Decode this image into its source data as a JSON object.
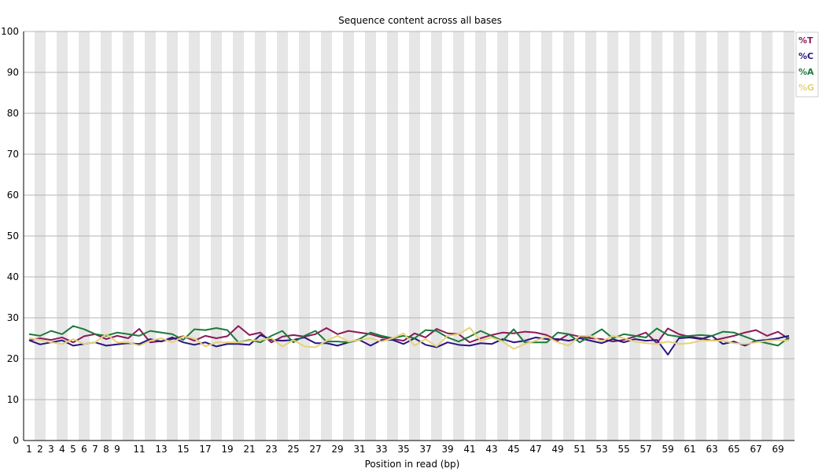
{
  "chart_data": {
    "type": "line",
    "title": "Sequence content across all bases",
    "xlabel": "Position in read (bp)",
    "ylabel": "",
    "ylim": [
      0,
      100
    ],
    "yticks": [
      0,
      10,
      20,
      30,
      40,
      50,
      60,
      70,
      80,
      90,
      100
    ],
    "categories": [
      "1",
      "2",
      "3",
      "4",
      "5",
      "6",
      "7",
      "8",
      "9",
      "10",
      "11",
      "12",
      "13",
      "14",
      "15",
      "16",
      "17",
      "18",
      "19",
      "20",
      "21",
      "22",
      "23",
      "24",
      "25",
      "26",
      "27",
      "28",
      "29",
      "30",
      "31",
      "32",
      "33",
      "34",
      "35",
      "36",
      "37",
      "38",
      "39",
      "40",
      "41",
      "42",
      "43",
      "44",
      "45",
      "46",
      "47",
      "48",
      "49",
      "50",
      "51",
      "52",
      "53",
      "54",
      "55",
      "56",
      "57",
      "58",
      "59",
      "60",
      "61",
      "62",
      "63",
      "64",
      "65",
      "66",
      "67",
      "68",
      "69",
      "70"
    ],
    "xtick_labels": [
      "1",
      "2",
      "3",
      "4",
      "5",
      "6",
      "7",
      "8",
      "9",
      "",
      "11",
      "",
      "13",
      "",
      "15",
      "",
      "17",
      "",
      "19",
      "",
      "21",
      "",
      "23",
      "",
      "25",
      "",
      "27",
      "",
      "29",
      "",
      "31",
      "",
      "33",
      "",
      "35",
      "",
      "37",
      "",
      "39",
      "",
      "41",
      "",
      "43",
      "",
      "45",
      "",
      "47",
      "",
      "49",
      "",
      "51",
      "",
      "53",
      "",
      "55",
      "",
      "57",
      "",
      "59",
      "",
      "61",
      "",
      "63",
      "",
      "65",
      "",
      "67",
      "",
      "69",
      ""
    ],
    "grid": true,
    "legend_position": "top-right",
    "series": [
      {
        "name": "%T",
        "color": "#8b1a5a",
        "values": [
          24.5,
          25.0,
          24.6,
          25.2,
          24.0,
          25.5,
          26.0,
          24.8,
          25.6,
          25.0,
          27.3,
          24.0,
          24.3,
          24.8,
          25.5,
          24.4,
          25.6,
          25.0,
          25.5,
          28.0,
          25.8,
          26.4,
          24.0,
          25.4,
          25.8,
          25.4,
          26.0,
          27.5,
          26.0,
          26.8,
          26.4,
          26.0,
          25.2,
          24.8,
          24.4,
          26.2,
          25.2,
          27.3,
          26.2,
          26.0,
          24.0,
          25.0,
          25.8,
          26.4,
          26.2,
          26.6,
          26.4,
          25.8,
          24.4,
          26.0,
          25.4,
          25.0,
          24.8,
          24.2,
          24.6,
          25.4,
          26.4,
          23.8,
          27.4,
          26.0,
          25.4,
          25.0,
          24.4,
          25.0,
          25.6,
          26.4,
          27.0,
          25.6,
          26.6,
          24.8
        ]
      },
      {
        "name": "%C",
        "color": "#2a1580",
        "values": [
          24.5,
          23.5,
          24.0,
          24.5,
          23.2,
          23.6,
          24.0,
          23.2,
          23.5,
          23.8,
          23.6,
          24.8,
          24.2,
          25.2,
          24.0,
          23.4,
          24.0,
          23.0,
          23.6,
          23.6,
          23.4,
          25.8,
          24.6,
          24.4,
          24.6,
          25.2,
          23.8,
          23.8,
          23.2,
          24.0,
          24.6,
          23.2,
          24.6,
          24.6,
          23.6,
          25.0,
          23.4,
          22.8,
          24.0,
          23.4,
          23.2,
          23.8,
          23.6,
          24.8,
          24.0,
          24.4,
          25.2,
          24.8,
          24.8,
          24.4,
          25.0,
          24.4,
          23.8,
          24.8,
          24.0,
          24.8,
          24.4,
          24.6,
          21.0,
          25.0,
          25.2,
          24.8,
          25.6,
          23.6,
          24.2,
          23.2,
          24.4,
          24.6,
          25.0,
          25.6
        ]
      },
      {
        "name": "%A",
        "color": "#1e7a3a",
        "values": [
          26.0,
          25.6,
          26.8,
          26.0,
          28.0,
          27.2,
          26.0,
          25.6,
          26.4,
          26.0,
          25.6,
          26.8,
          26.4,
          26.0,
          24.6,
          27.2,
          27.0,
          27.5,
          27.0,
          24.0,
          24.6,
          24.0,
          25.6,
          26.8,
          24.0,
          25.6,
          26.8,
          24.2,
          24.2,
          24.0,
          24.8,
          26.4,
          25.6,
          25.0,
          25.6,
          25.0,
          27.0,
          26.8,
          25.2,
          24.2,
          25.4,
          26.8,
          25.6,
          24.4,
          27.2,
          24.0,
          24.0,
          24.0,
          26.4,
          26.0,
          24.0,
          25.6,
          27.2,
          25.0,
          26.0,
          25.6,
          25.2,
          27.4,
          25.8,
          25.4,
          25.6,
          25.8,
          25.6,
          26.6,
          26.4,
          25.4,
          24.4,
          23.8,
          23.2,
          25.2
        ]
      },
      {
        "name": "%G",
        "color": "#e6d27a",
        "values": [
          25.0,
          24.6,
          24.0,
          23.6,
          24.8,
          23.6,
          24.0,
          26.0,
          24.0,
          24.0,
          23.2,
          24.4,
          25.0,
          24.0,
          25.4,
          25.0,
          23.0,
          24.0,
          24.0,
          24.0,
          24.4,
          24.6,
          25.0,
          23.0,
          24.6,
          23.0,
          22.8,
          24.4,
          25.6,
          24.2,
          24.6,
          25.0,
          24.2,
          25.0,
          26.2,
          23.2,
          24.8,
          23.0,
          25.6,
          26.0,
          27.6,
          24.4,
          25.2,
          24.2,
          22.4,
          23.6,
          24.4,
          25.4,
          24.0,
          23.2,
          25.6,
          25.6,
          24.2,
          25.6,
          25.0,
          24.2,
          23.8,
          23.6,
          24.2,
          23.6,
          23.8,
          24.4,
          24.4,
          24.4,
          23.8,
          23.6,
          24.0,
          24.4,
          24.6,
          24.4
        ]
      }
    ]
  }
}
